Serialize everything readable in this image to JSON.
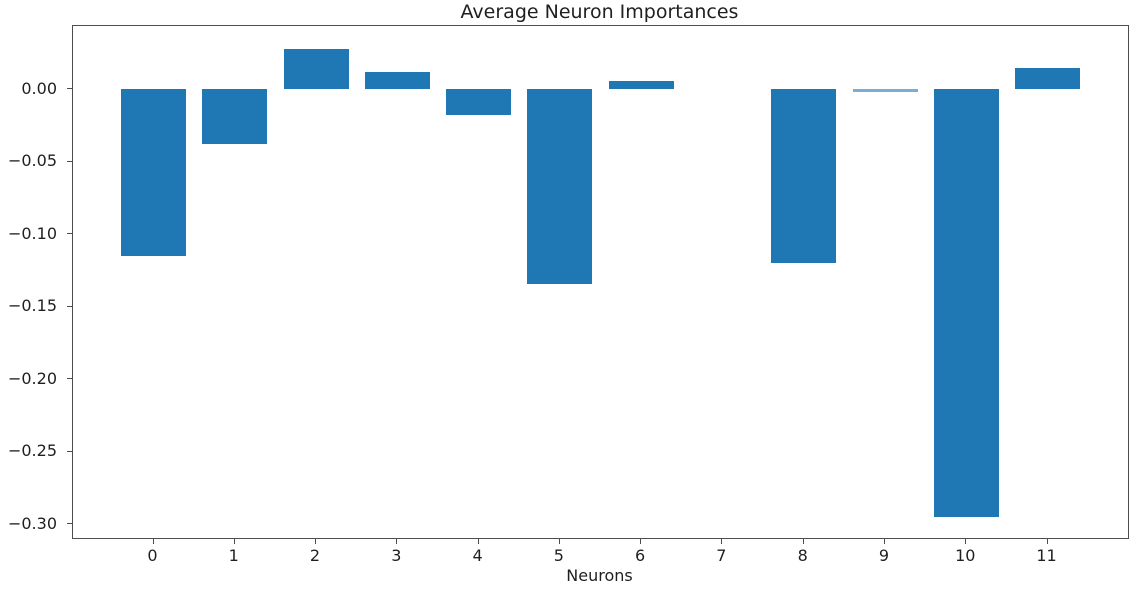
{
  "chart_data": {
    "type": "bar",
    "title": "Average Neuron Importances",
    "xlabel": "Neurons",
    "ylabel": "",
    "categories": [
      "0",
      "1",
      "2",
      "3",
      "4",
      "5",
      "6",
      "7",
      "8",
      "9",
      "10",
      "11"
    ],
    "values": [
      -0.115,
      -0.038,
      0.028,
      0.012,
      -0.018,
      -0.134,
      0.006,
      0.0,
      -0.12,
      -0.002,
      -0.295,
      0.015
    ],
    "series_name": "average_importance",
    "bar_color": "#1f77b4",
    "bar_width_fraction": 0.8,
    "xlim": [
      -0.99,
      11.99
    ],
    "ylim": [
      -0.3094,
      0.0437
    ],
    "ytick_values": [
      0.0,
      -0.05,
      -0.1,
      -0.15,
      -0.2,
      -0.25,
      -0.3
    ],
    "ytick_labels": [
      "0.00",
      "−0.05",
      "−0.10",
      "−0.15",
      "−0.20",
      "−0.25",
      "−0.30"
    ],
    "grid": false,
    "legend_position": "none",
    "spine_color": "#4d4d4d",
    "text_color": "#1f1f1f",
    "background_color": "#ffffff"
  }
}
